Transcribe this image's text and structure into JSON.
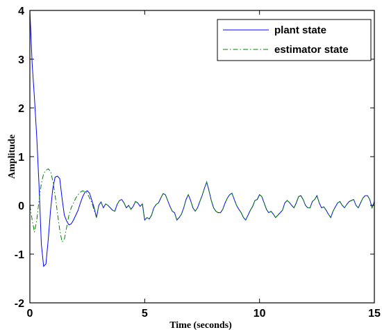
{
  "chart_data": {
    "type": "line",
    "title": "",
    "xlabel": "Time (seconds)",
    "ylabel": "Amplitude",
    "xlim": [
      0,
      15
    ],
    "ylim": [
      -2,
      4
    ],
    "xticks": [
      "0",
      "5",
      "10",
      "15"
    ],
    "yticks": [
      "-2",
      "-1",
      "0",
      "1",
      "2",
      "3",
      "4"
    ],
    "grid": false,
    "legend_position": "top-right",
    "series": [
      {
        "name": "plant state",
        "color": "#0000ff",
        "dash": "solid",
        "x": [
          0,
          0.1,
          0.2,
          0.3,
          0.4,
          0.5,
          0.6,
          0.7,
          0.8,
          0.9,
          1.0,
          1.1,
          1.2,
          1.3,
          1.4,
          1.5,
          1.6,
          1.7,
          1.8,
          1.9,
          2.0,
          2.1,
          2.2,
          2.3,
          2.4,
          2.5,
          2.6,
          2.7,
          2.8,
          2.9,
          3.0,
          3.1,
          3.2,
          3.3,
          3.4,
          3.5,
          3.6,
          3.7,
          3.8,
          3.9,
          4.0,
          4.1,
          4.2,
          4.3,
          4.4,
          4.5,
          4.6,
          4.7,
          4.8,
          4.9,
          5.0,
          5.1,
          5.2,
          5.3,
          5.4,
          5.5,
          5.6,
          5.7,
          5.8,
          5.9,
          6.0,
          6.1,
          6.2,
          6.3,
          6.4,
          6.5,
          6.6,
          6.7,
          6.8,
          6.9,
          7.0,
          7.1,
          7.2,
          7.3,
          7.4,
          7.5,
          7.6,
          7.7,
          7.8,
          7.9,
          8.0,
          8.1,
          8.2,
          8.3,
          8.4,
          8.5,
          8.6,
          8.7,
          8.8,
          8.9,
          9.0,
          9.1,
          9.2,
          9.3,
          9.4,
          9.5,
          9.6,
          9.7,
          9.8,
          9.9,
          10.0,
          10.1,
          10.2,
          10.3,
          10.4,
          10.5,
          10.6,
          10.7,
          10.8,
          10.9,
          11.0,
          11.1,
          11.2,
          11.3,
          11.4,
          11.5,
          11.6,
          11.7,
          11.8,
          11.9,
          12.0,
          12.1,
          12.2,
          12.3,
          12.4,
          12.5,
          12.6,
          12.7,
          12.8,
          12.9,
          13.0,
          13.1,
          13.2,
          13.3,
          13.4,
          13.5,
          13.6,
          13.7,
          13.8,
          13.9,
          14.0,
          14.1,
          14.2,
          14.3,
          14.4,
          14.5,
          14.6,
          14.7,
          14.8,
          14.9,
          15.0
        ],
        "y": [
          4.0,
          2.9,
          2.2,
          1.4,
          0.4,
          -0.8,
          -1.25,
          -1.2,
          -0.7,
          -0.1,
          0.35,
          0.58,
          0.6,
          0.55,
          0.15,
          -0.2,
          -0.32,
          -0.4,
          -0.38,
          -0.3,
          -0.2,
          -0.1,
          0.05,
          0.18,
          0.27,
          0.3,
          0.25,
          0.1,
          -0.05,
          -0.25,
          0.0,
          0.07,
          -0.05,
          0.03,
          0.0,
          -0.05,
          -0.1,
          -0.12,
          0.02,
          0.1,
          0.12,
          0.05,
          -0.05,
          0.0,
          -0.08,
          -0.02,
          0.08,
          0.05,
          -0.02,
          0.03,
          -0.3,
          -0.25,
          -0.28,
          -0.2,
          -0.05,
          0.02,
          0.05,
          0.15,
          0.24,
          0.22,
          0.1,
          -0.02,
          -0.12,
          -0.15,
          -0.3,
          -0.25,
          -0.18,
          -0.05,
          0.12,
          0.22,
          0.1,
          -0.05,
          -0.12,
          -0.05,
          0.08,
          0.2,
          0.35,
          0.48,
          0.3,
          0.1,
          -0.05,
          -0.12,
          -0.15,
          -0.15,
          -0.08,
          0.05,
          0.15,
          0.22,
          0.25,
          0.12,
          0.0,
          -0.08,
          -0.15,
          -0.25,
          -0.3,
          -0.2,
          -0.1,
          -0.02,
          0.1,
          0.12,
          0.22,
          0.18,
          0.05,
          -0.08,
          -0.15,
          -0.12,
          -0.18,
          -0.25,
          -0.2,
          -0.15,
          -0.1,
          0.05,
          0.1,
          0.06,
          0.0,
          -0.05,
          0.05,
          0.18,
          0.2,
          0.12,
          0.0,
          -0.05,
          -0.05,
          0.08,
          0.12,
          0.2,
          0.05,
          -0.05,
          -0.03,
          -0.1,
          -0.18,
          -0.25,
          -0.12,
          -0.03,
          0.05,
          0.08,
          0.0,
          -0.05,
          0.02,
          0.08,
          0.1,
          0.12,
          0.0,
          -0.05,
          0.05,
          0.15,
          0.2,
          0.2,
          0.12,
          -0.05,
          0.08
        ]
      },
      {
        "name": "estimator state",
        "color": "#008000",
        "dash": "dashdot",
        "x": [
          0,
          0.1,
          0.2,
          0.3,
          0.4,
          0.5,
          0.6,
          0.7,
          0.8,
          0.9,
          1.0,
          1.1,
          1.2,
          1.3,
          1.4,
          1.5,
          1.6,
          1.7,
          1.8,
          1.9,
          2.0,
          2.1,
          2.2,
          2.3,
          2.4,
          2.5,
          2.6,
          2.7,
          2.8,
          2.9,
          3.0,
          3.1,
          3.2,
          3.3,
          3.4,
          3.5,
          3.6,
          3.7,
          3.8,
          3.9,
          4.0,
          4.1,
          4.2,
          4.3,
          4.4,
          4.5,
          4.6,
          4.7,
          4.8,
          4.9,
          5.0,
          5.1,
          5.2,
          5.3,
          5.4,
          5.5,
          5.6,
          5.7,
          5.8,
          5.9,
          6.0,
          6.1,
          6.2,
          6.3,
          6.4,
          6.5,
          6.6,
          6.7,
          6.8,
          6.9,
          7.0,
          7.1,
          7.2,
          7.3,
          7.4,
          7.5,
          7.6,
          7.7,
          7.8,
          7.9,
          8.0,
          8.1,
          8.2,
          8.3,
          8.4,
          8.5,
          8.6,
          8.7,
          8.8,
          8.9,
          9.0,
          9.1,
          9.2,
          9.3,
          9.4,
          9.5,
          9.6,
          9.7,
          9.8,
          9.9,
          10.0,
          10.1,
          10.2,
          10.3,
          10.4,
          10.5,
          10.6,
          10.7,
          10.8,
          10.9,
          11.0,
          11.1,
          11.2,
          11.3,
          11.4,
          11.5,
          11.6,
          11.7,
          11.8,
          11.9,
          12.0,
          12.1,
          12.2,
          12.3,
          12.4,
          12.5,
          12.6,
          12.7,
          12.8,
          12.9,
          13.0,
          13.1,
          13.2,
          13.3,
          13.4,
          13.5,
          13.6,
          13.7,
          13.8,
          13.9,
          14.0,
          14.1,
          14.2,
          14.3,
          14.4,
          14.5,
          14.6,
          14.7,
          14.8,
          14.9,
          15.0
        ],
        "y": [
          0.0,
          -0.3,
          -0.55,
          -0.3,
          0.1,
          0.45,
          0.65,
          0.72,
          0.75,
          0.7,
          0.5,
          0.2,
          -0.15,
          -0.5,
          -0.75,
          -0.7,
          -0.45,
          -0.2,
          -0.05,
          0.05,
          0.15,
          0.22,
          0.27,
          0.3,
          0.28,
          0.25,
          0.15,
          0.05,
          -0.1,
          -0.25,
          0.0,
          0.07,
          -0.05,
          0.03,
          0.0,
          -0.05,
          -0.1,
          -0.12,
          0.02,
          0.1,
          0.12,
          0.05,
          -0.05,
          0.0,
          -0.08,
          -0.02,
          0.08,
          0.05,
          -0.02,
          0.03,
          -0.3,
          -0.25,
          -0.28,
          -0.2,
          -0.05,
          0.02,
          0.05,
          0.15,
          0.24,
          0.22,
          0.1,
          -0.02,
          -0.12,
          -0.15,
          -0.3,
          -0.25,
          -0.18,
          -0.05,
          0.12,
          0.22,
          0.1,
          -0.05,
          -0.12,
          -0.05,
          0.08,
          0.2,
          0.35,
          0.48,
          0.3,
          0.1,
          -0.05,
          -0.12,
          -0.15,
          -0.15,
          -0.08,
          0.05,
          0.15,
          0.22,
          0.25,
          0.12,
          0.0,
          -0.08,
          -0.15,
          -0.25,
          -0.3,
          -0.2,
          -0.1,
          -0.02,
          0.1,
          0.12,
          0.22,
          0.18,
          0.05,
          -0.08,
          -0.15,
          -0.12,
          -0.18,
          -0.25,
          -0.2,
          -0.15,
          -0.1,
          0.05,
          0.1,
          0.06,
          0.0,
          -0.05,
          0.05,
          0.18,
          0.2,
          0.12,
          0.0,
          -0.05,
          -0.05,
          0.08,
          0.12,
          0.2,
          0.05,
          -0.05,
          -0.03,
          -0.1,
          -0.18,
          -0.25,
          -0.12,
          -0.03,
          0.05,
          0.08,
          0.0,
          -0.05,
          0.02,
          0.08,
          0.1,
          0.12,
          0.0,
          -0.05,
          0.05,
          0.15,
          0.2,
          0.2,
          0.12,
          -0.05,
          0.08
        ]
      }
    ]
  }
}
